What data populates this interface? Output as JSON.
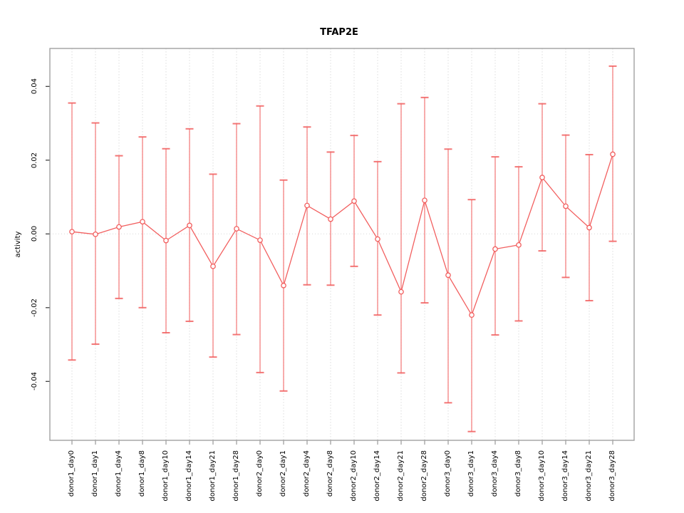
{
  "title": "TFAP2E",
  "y_axis_label": "activity",
  "y_tick_labels": [
    "-0.04",
    "-0.02",
    "0.00",
    "0.02",
    "0.04"
  ],
  "chart_data": {
    "type": "line",
    "title": "TFAP2E",
    "xlabel": "",
    "ylabel": "activity",
    "ylim": [
      -0.056,
      0.05
    ],
    "yticks": [
      -0.04,
      -0.02,
      0,
      0.02,
      0.04
    ],
    "grid": "vertical dotted gridline per category; dotted horizontal line at y=0",
    "legend": "none",
    "marker": "open-circle",
    "error_bars": true,
    "categories": [
      "donor1_day0",
      "donor1_day1",
      "donor1_day4",
      "donor1_day8",
      "donor1_day10",
      "donor1_day14",
      "donor1_day21",
      "donor1_day28",
      "donor2_day0",
      "donor2_day1",
      "donor2_day4",
      "donor2_day8",
      "donor2_day10",
      "donor2_day14",
      "donor2_day21",
      "donor2_day28",
      "donor3_day0",
      "donor3_day1",
      "donor3_day4",
      "donor3_day8",
      "donor3_day10",
      "donor3_day14",
      "donor3_day21",
      "donor3_day28"
    ],
    "series": [
      {
        "name": "activity",
        "values": [
          0.0006,
          -0.0001,
          0.0019,
          0.0033,
          -0.0018,
          0.0023,
          -0.0088,
          0.0014,
          -0.0017,
          -0.014,
          0.0077,
          0.004,
          0.0089,
          -0.0014,
          -0.0157,
          0.0091,
          -0.0112,
          -0.022,
          -0.0041,
          -0.003,
          0.0153,
          0.0075,
          0.0017,
          0.0216
        ],
        "lower": [
          -0.0342,
          -0.0299,
          -0.0175,
          -0.02,
          -0.0268,
          -0.0237,
          -0.0334,
          -0.0273,
          -0.0376,
          -0.0426,
          -0.0138,
          -0.0139,
          -0.0088,
          -0.022,
          -0.0377,
          -0.0187,
          -0.0458,
          -0.0536,
          -0.0274,
          -0.0236,
          -0.0046,
          -0.0118,
          -0.0181,
          -0.002
        ],
        "upper": [
          0.0355,
          0.0301,
          0.0212,
          0.0263,
          0.0231,
          0.0285,
          0.0162,
          0.0299,
          0.0347,
          0.0146,
          0.029,
          0.0222,
          0.0267,
          0.0196,
          0.0353,
          0.037,
          0.023,
          0.0093,
          0.0209,
          0.0182,
          0.0353,
          0.0268,
          0.0215,
          0.0455
        ]
      }
    ],
    "colors": {
      "series": "#f25f5f",
      "grid": "#dcdcdc",
      "zero_line": "#d8d8d8",
      "plot_border": "#999999",
      "y_tick": "#333333",
      "x_tick": "#9a9a9a",
      "text": "#000000",
      "background": "#ffffff"
    }
  }
}
